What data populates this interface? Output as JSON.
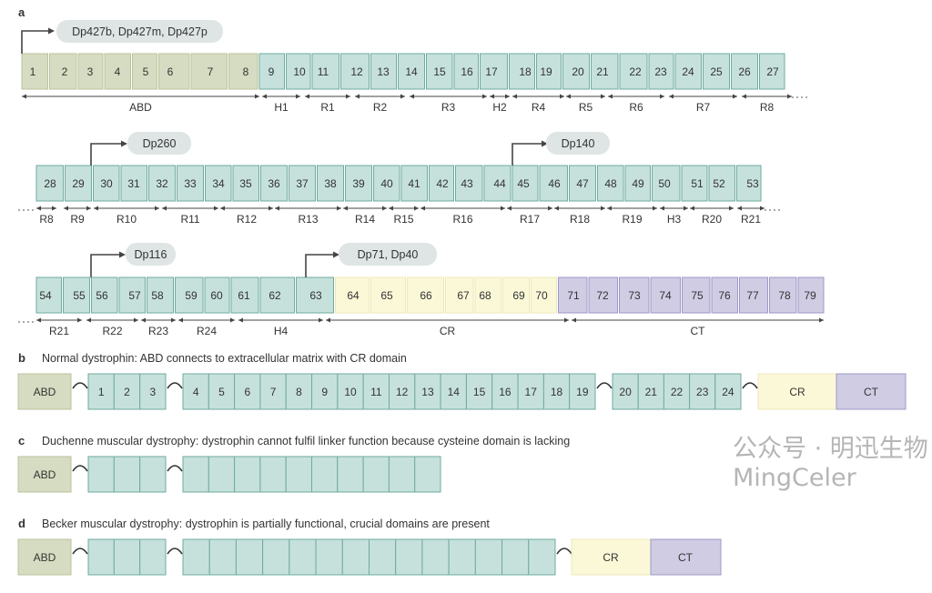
{
  "colors": {
    "abd": "#d6dcc1",
    "abd_stroke": "#b9c39c",
    "rod": "#c6e1db",
    "rod_stroke": "#6fab9f",
    "cr": "#fbf8d8",
    "cr_stroke": "#ece8b8",
    "ct": "#cfcce4",
    "ct_stroke": "#9d98c6",
    "promoter_box": "#dfe5e5"
  },
  "panel_a": {
    "letter": "a",
    "rows": [
      {
        "exons": [
          "1",
          "2",
          "3",
          "4",
          "5",
          "6",
          "7",
          "8",
          "9",
          "10",
          "11",
          "12",
          "13",
          "14",
          "15",
          "16",
          "17",
          "18",
          "19",
          "20",
          "21",
          "22",
          "23",
          "24",
          "25",
          "26",
          "27"
        ],
        "groups": [
          "abd",
          "abd",
          "abd",
          "abd",
          "abd",
          "abd",
          "abd",
          "abd",
          "rod",
          "rod",
          "rod",
          "rod",
          "rod",
          "rod",
          "rod",
          "rod",
          "rod",
          "rod",
          "rod",
          "rod",
          "rod",
          "rod",
          "rod",
          "rod",
          "rod",
          "rod",
          "rod"
        ],
        "domains": [
          "ABD",
          "H1",
          "R1",
          "R2",
          "R3",
          "H2",
          "R4",
          "R5",
          "R6",
          "R7",
          "R8"
        ]
      },
      {
        "exons": [
          "28",
          "29",
          "30",
          "31",
          "32",
          "33",
          "34",
          "35",
          "36",
          "37",
          "38",
          "39",
          "40",
          "41",
          "42",
          "43",
          "44",
          "45",
          "46",
          "47",
          "48",
          "49",
          "50",
          "51",
          "52",
          "53"
        ],
        "domains": [
          "R8",
          "R9",
          "R10",
          "R11",
          "R12",
          "R13",
          "R14",
          "R15",
          "R16",
          "R17",
          "R18",
          "R19",
          "H3",
          "R20",
          "R21"
        ]
      },
      {
        "exons": [
          "54",
          "55",
          "56",
          "57",
          "58",
          "59",
          "60",
          "61",
          "62",
          "63",
          "64",
          "65",
          "66",
          "67",
          "68",
          "69",
          "70",
          "71",
          "72",
          "73",
          "74",
          "75",
          "76",
          "77",
          "78",
          "79"
        ],
        "groups": [
          "rod",
          "rod",
          "rod",
          "rod",
          "rod",
          "rod",
          "rod",
          "rod",
          "rod",
          "rod",
          "cr",
          "cr",
          "cr",
          "cr",
          "cr",
          "cr",
          "cr",
          "ct",
          "ct",
          "ct",
          "ct",
          "ct",
          "ct",
          "ct",
          "ct",
          "ct"
        ],
        "domains": [
          "R21",
          "R22",
          "R23",
          "R24",
          "H4",
          "CR",
          "CT"
        ]
      }
    ],
    "promoters": [
      "Dp427b, Dp427m, Dp427p",
      "Dp260",
      "Dp140",
      "Dp116",
      "Dp71, Dp40"
    ]
  },
  "panel_b": {
    "letter": "b",
    "title": "Normal dystrophin: ABD connects to extracellular matrix with CR domain",
    "abd": "ABD",
    "repeats": [
      "1",
      "2",
      "3",
      "4",
      "5",
      "6",
      "7",
      "8",
      "9",
      "10",
      "11",
      "12",
      "13",
      "14",
      "15",
      "16",
      "17",
      "18",
      "19",
      "20",
      "21",
      "22",
      "23",
      "24"
    ],
    "cr": "CR",
    "ct": "CT"
  },
  "panel_c": {
    "letter": "c",
    "title": "Duchenne muscular dystrophy: dystrophin cannot fulfil linker function because cysteine domain is lacking",
    "abd": "ABD"
  },
  "panel_d": {
    "letter": "d",
    "title": "Becker muscular dystrophy: dystrophin is partially functional, crucial domains are present",
    "abd": "ABD",
    "cr": "CR",
    "ct": "CT"
  },
  "watermark": "公众号 · 明迅生物MingCeler"
}
